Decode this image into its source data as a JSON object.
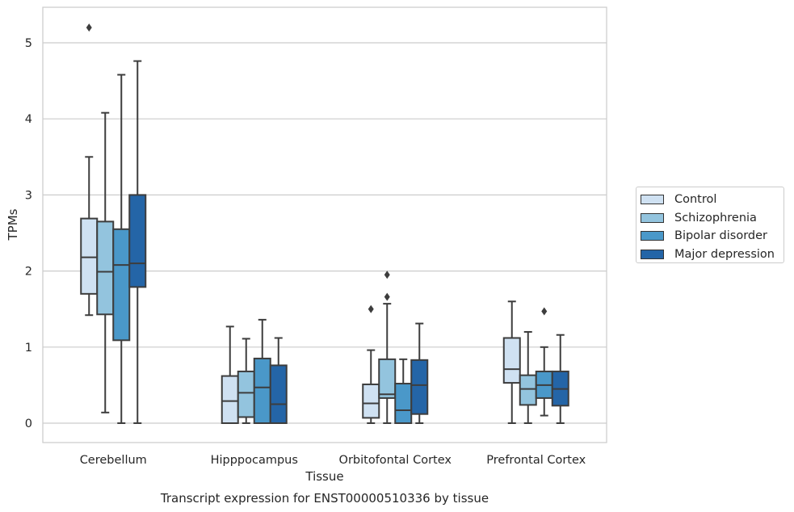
{
  "chart_data": {
    "type": "box",
    "title": "Transcript expression for ENST00000510336 by tissue",
    "xlabel": "Tissue",
    "ylabel": "TPMs",
    "ylim": [
      -0.25,
      4.95
    ],
    "yticks": [
      "0",
      "1",
      "2",
      "3",
      "4",
      "5"
    ],
    "grid": true,
    "legend_placement": "right, outside",
    "categories": [
      "Cerebellum",
      "Hipppocampus",
      "Orbitofontal Cortex",
      "Prefrontal Cortex"
    ],
    "series": [
      {
        "name": "Control",
        "color": "#cfe1f2",
        "boxes": [
          {
            "whisker_low": 1.42,
            "q1": 1.7,
            "median": 2.18,
            "q3": 2.69,
            "whisker_high": 3.5,
            "outliers": [
              5.2
            ]
          },
          {
            "whisker_low": 0.0,
            "q1": 0.0,
            "median": 0.29,
            "q3": 0.62,
            "whisker_high": 1.27,
            "outliers": []
          },
          {
            "whisker_low": 0.0,
            "q1": 0.07,
            "median": 0.26,
            "q3": 0.51,
            "whisker_high": 0.96,
            "outliers": [
              1.5
            ]
          },
          {
            "whisker_low": 0.0,
            "q1": 0.53,
            "median": 0.71,
            "q3": 1.12,
            "whisker_high": 1.6,
            "outliers": []
          }
        ]
      },
      {
        "name": "Schizophrenia",
        "color": "#93c4de",
        "boxes": [
          {
            "whisker_low": 0.14,
            "q1": 1.43,
            "median": 1.99,
            "q3": 2.65,
            "whisker_high": 4.08,
            "outliers": []
          },
          {
            "whisker_low": 0.0,
            "q1": 0.08,
            "median": 0.4,
            "q3": 0.68,
            "whisker_high": 1.11,
            "outliers": []
          },
          {
            "whisker_low": 0.0,
            "q1": 0.33,
            "median": 0.38,
            "q3": 0.84,
            "whisker_high": 1.57,
            "outliers": [
              1.66,
              1.95
            ]
          },
          {
            "whisker_low": 0.0,
            "q1": 0.24,
            "median": 0.45,
            "q3": 0.63,
            "whisker_high": 1.2,
            "outliers": []
          }
        ]
      },
      {
        "name": "Bipolar disorder",
        "color": "#4a98c9",
        "boxes": [
          {
            "whisker_low": 0.0,
            "q1": 1.09,
            "median": 2.08,
            "q3": 2.55,
            "whisker_high": 4.58,
            "outliers": []
          },
          {
            "whisker_low": 0.0,
            "q1": 0.0,
            "median": 0.47,
            "q3": 0.85,
            "whisker_high": 1.36,
            "outliers": []
          },
          {
            "whisker_low": 0.0,
            "q1": 0.0,
            "median": 0.17,
            "q3": 0.52,
            "whisker_high": 0.84,
            "outliers": []
          },
          {
            "whisker_low": 0.1,
            "q1": 0.33,
            "median": 0.5,
            "q3": 0.68,
            "whisker_high": 1.0,
            "outliers": [
              1.47
            ]
          }
        ]
      },
      {
        "name": "Major depression",
        "color": "#2465a7",
        "boxes": [
          {
            "whisker_low": 0.0,
            "q1": 1.79,
            "median": 2.1,
            "q3": 3.0,
            "whisker_high": 4.76,
            "outliers": []
          },
          {
            "whisker_low": 0.0,
            "q1": 0.0,
            "median": 0.25,
            "q3": 0.76,
            "whisker_high": 1.12,
            "outliers": []
          },
          {
            "whisker_low": 0.0,
            "q1": 0.12,
            "median": 0.5,
            "q3": 0.83,
            "whisker_high": 1.31,
            "outliers": []
          },
          {
            "whisker_low": 0.0,
            "q1": 0.23,
            "median": 0.45,
            "q3": 0.68,
            "whisker_high": 1.16,
            "outliers": []
          }
        ]
      }
    ]
  }
}
